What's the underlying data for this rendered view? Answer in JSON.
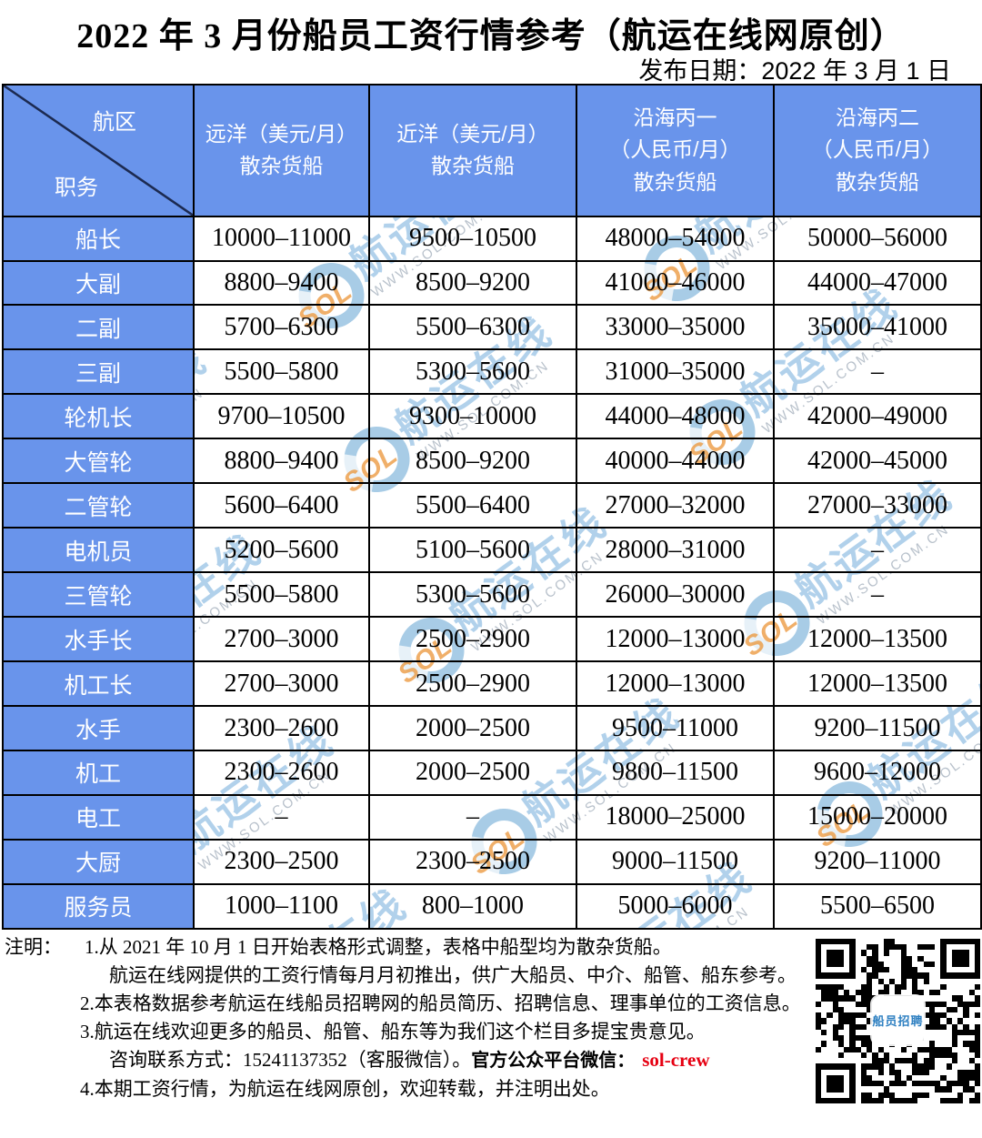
{
  "page": {
    "title": "2022 年 3 月份船员工资行情参考（航运在线网原创）",
    "publish_date": "发布日期：2022 年 3 月 1 日"
  },
  "table": {
    "corner": {
      "region_label": "航区",
      "position_label": "职务"
    },
    "columns": [
      {
        "label": "远洋（美元/月）\n散杂货船"
      },
      {
        "label": "近洋（美元/月）\n散杂货船"
      },
      {
        "label": "沿海丙一\n（人民币/月）\n散杂货船"
      },
      {
        "label": "沿海丙二\n（人民币/月）\n散杂货船"
      }
    ],
    "rows": [
      {
        "label": "船长",
        "values": [
          "10000–11000",
          "9500–10500",
          "48000–54000",
          "50000–56000"
        ]
      },
      {
        "label": "大副",
        "values": [
          "8800–9400",
          "8500–9200",
          "41000–46000",
          "44000–47000"
        ]
      },
      {
        "label": "二副",
        "values": [
          "5700–6300",
          "5500–6300",
          "33000–35000",
          "35000–41000"
        ]
      },
      {
        "label": "三副",
        "values": [
          "5500–5800",
          "5300–5600",
          "31000–35000",
          "–"
        ]
      },
      {
        "label": "轮机长",
        "values": [
          "9700–10500",
          "9300–10000",
          "44000–48000",
          "42000–49000"
        ]
      },
      {
        "label": "大管轮",
        "values": [
          "8800–9400",
          "8500–9200",
          "40000–44000",
          "42000–45000"
        ]
      },
      {
        "label": "二管轮",
        "values": [
          "5600–6400",
          "5500–6400",
          "27000–32000",
          "27000–33000"
        ]
      },
      {
        "label": "电机员",
        "values": [
          "5200–5600",
          "5100–5600",
          "28000–31000",
          "–"
        ]
      },
      {
        "label": "三管轮",
        "values": [
          "5500–5800",
          "5300–5600",
          "26000–30000",
          "–"
        ]
      },
      {
        "label": "水手长",
        "values": [
          "2700–3000",
          "2500–2900",
          "12000–13000",
          "12000–13500"
        ]
      },
      {
        "label": "机工长",
        "values": [
          "2700–3000",
          "2500–2900",
          "12000–13000",
          "12000–13500"
        ]
      },
      {
        "label": "水手",
        "values": [
          "2300–2600",
          "2000–2500",
          "9500–11000",
          "9200–11500"
        ]
      },
      {
        "label": "机工",
        "values": [
          "2300–2600",
          "2000–2500",
          "9800–11500",
          "9600–12000"
        ]
      },
      {
        "label": "电工",
        "values": [
          "–",
          "–",
          "18000–25000",
          "15000–20000"
        ]
      },
      {
        "label": "大厨",
        "values": [
          "2300–2500",
          "2300–2500",
          "9000–11500",
          "9200–11000"
        ]
      },
      {
        "label": "服务员",
        "values": [
          "1000–1100",
          "800–1000",
          "5000–6000",
          "5500–6500"
        ]
      }
    ]
  },
  "notes": {
    "prefix": "注明：",
    "line1": "1.从 2021 年 10 月 1 日开始表格形式调整，表格中船型均为散杂货船。",
    "line1b": "航运在线网提供的工资行情每月月初推出，供广大船员、中介、船管、船东参考。",
    "line2": "2.本表格数据参考航运在线船员招聘网的船员简历、招聘信息、理事单位的工资信息。",
    "line3": "3.航运在线欢迎更多的船员、船管、船东等为我们这个栏目多提宝贵意见。",
    "contact_normal": "咨询联系方式：15241137352（客服微信）。",
    "contact_bold": "官方公众平台微信：",
    "contact_red": "sol-crew",
    "line4": "4.本期工资行情，为航运在线网原创，欢迎转载，并注明出处。"
  },
  "watermark": {
    "logo": "SOL",
    "text": "航运在线",
    "url": "WWW.SOL.COM.CN"
  },
  "qr": {
    "center_label": "船员招聘"
  },
  "colors": {
    "header_blue": "#6994EB",
    "accent_red": "#e60012",
    "watermark_blue": "#7db2de"
  }
}
